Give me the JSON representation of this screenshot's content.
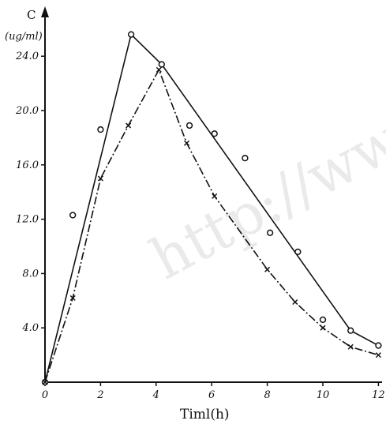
{
  "chart_data": {
    "type": "line",
    "ylabel": "C",
    "yunit": "(ug/ml)",
    "xlabel": "Timl(h)",
    "xlim": [
      0,
      12
    ],
    "ylim": [
      0,
      26
    ],
    "x_ticks": [
      "0",
      "2",
      "4",
      "6",
      "8",
      "10",
      "12"
    ],
    "y_ticks": [
      "4.0",
      "8.0",
      "12.0",
      "16.0",
      "20.0",
      "24.0"
    ],
    "watermark": "http://www",
    "series": [
      {
        "marker": "circle",
        "line_style": "solid",
        "fit_line": [
          [
            0,
            0
          ],
          [
            3.1,
            25.6
          ],
          [
            4.2,
            23.4
          ],
          [
            11,
            3.8
          ],
          [
            12,
            2.7
          ]
        ],
        "points": [
          [
            0,
            0
          ],
          [
            1,
            12.3
          ],
          [
            2,
            18.6
          ],
          [
            3.1,
            25.6
          ],
          [
            4.2,
            23.4
          ],
          [
            5.2,
            18.9
          ],
          [
            6.1,
            18.3
          ],
          [
            7.2,
            16.5
          ],
          [
            8.1,
            11.0
          ],
          [
            9.1,
            9.6
          ],
          [
            10,
            4.6
          ],
          [
            11,
            3.8
          ],
          [
            12,
            2.7
          ]
        ]
      },
      {
        "marker": "x",
        "line_style": "dashdot",
        "points": [
          [
            0,
            0
          ],
          [
            1,
            6.2
          ],
          [
            2,
            15.0
          ],
          [
            3,
            18.9
          ],
          [
            4.1,
            23.0
          ],
          [
            5.1,
            17.6
          ],
          [
            6.1,
            13.7
          ],
          [
            8,
            8.3
          ],
          [
            9,
            5.9
          ],
          [
            10,
            4.0
          ],
          [
            11,
            2.6
          ],
          [
            12,
            2.0
          ]
        ]
      }
    ]
  }
}
